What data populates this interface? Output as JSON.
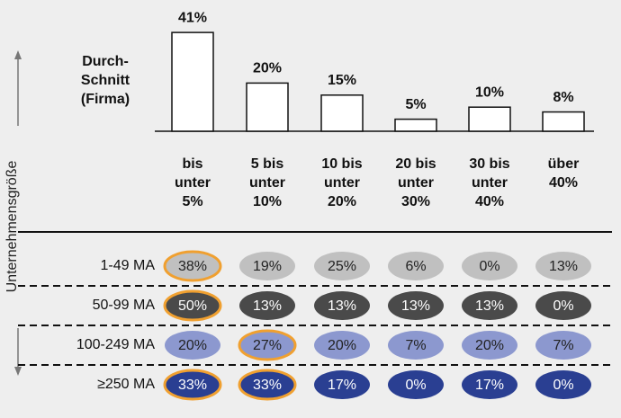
{
  "chart_data": {
    "type": "bar",
    "y_label": "Durch-\nSchnitt\n(Firma)",
    "side_label": "Unternehmensgröße",
    "categories": [
      "bis\nunter\n5%",
      "5 bis\nunter\n10%",
      "10 bis\nunter\n20%",
      "20 bis\nunter\n30%",
      "30 bis\nunter\n40%",
      "über\n40%"
    ],
    "values": [
      41,
      20,
      15,
      5,
      10,
      8
    ],
    "value_labels": [
      "41%",
      "20%",
      "15%",
      "5%",
      "10%",
      "8%"
    ],
    "color": "#ffffff",
    "rows": [
      {
        "name": "1-49 MA",
        "values": [
          38,
          19,
          25,
          6,
          0,
          13
        ],
        "value_labels": [
          "38%",
          "19%",
          "25%",
          "6%",
          "0%",
          "13%"
        ],
        "color": "#c0c0c0",
        "text_color": "#222222",
        "highlight": [
          0
        ]
      },
      {
        "name": "50-99 MA",
        "values": [
          50,
          13,
          13,
          13,
          13,
          0
        ],
        "value_labels": [
          "50%",
          "13%",
          "13%",
          "13%",
          "13%",
          "0%"
        ],
        "color": "#4a4a4a",
        "text_color": "#ffffff",
        "highlight": [
          0
        ]
      },
      {
        "name": "100-249 MA",
        "values": [
          20,
          27,
          20,
          7,
          20,
          7
        ],
        "value_labels": [
          "20%",
          "27%",
          "20%",
          "7%",
          "20%",
          "7%"
        ],
        "color": "#8c98cf",
        "text_color": "#222222",
        "highlight": [
          1
        ]
      },
      {
        "name": "≥250 MA",
        "values": [
          33,
          33,
          17,
          0,
          17,
          0
        ],
        "value_labels": [
          "33%",
          "33%",
          "17%",
          "0%",
          "17%",
          "0%"
        ],
        "color": "#2a3f92",
        "text_color": "#ffffff",
        "highlight": [
          0,
          1
        ]
      }
    ],
    "highlight_color": "#f0a030"
  }
}
